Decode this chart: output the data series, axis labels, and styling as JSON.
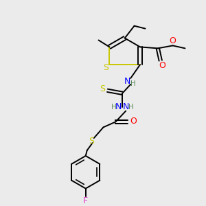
{
  "bg_color": "#ebebeb",
  "atom_colors": {
    "S": "#c8c800",
    "N": "#0000ff",
    "O": "#ff0000",
    "F": "#dd44cc",
    "C": "#000000",
    "H": "#5a8a5a"
  },
  "bond_color": "#000000",
  "lw": 1.4,
  "fs_main": 9.0,
  "fs_small": 7.5
}
